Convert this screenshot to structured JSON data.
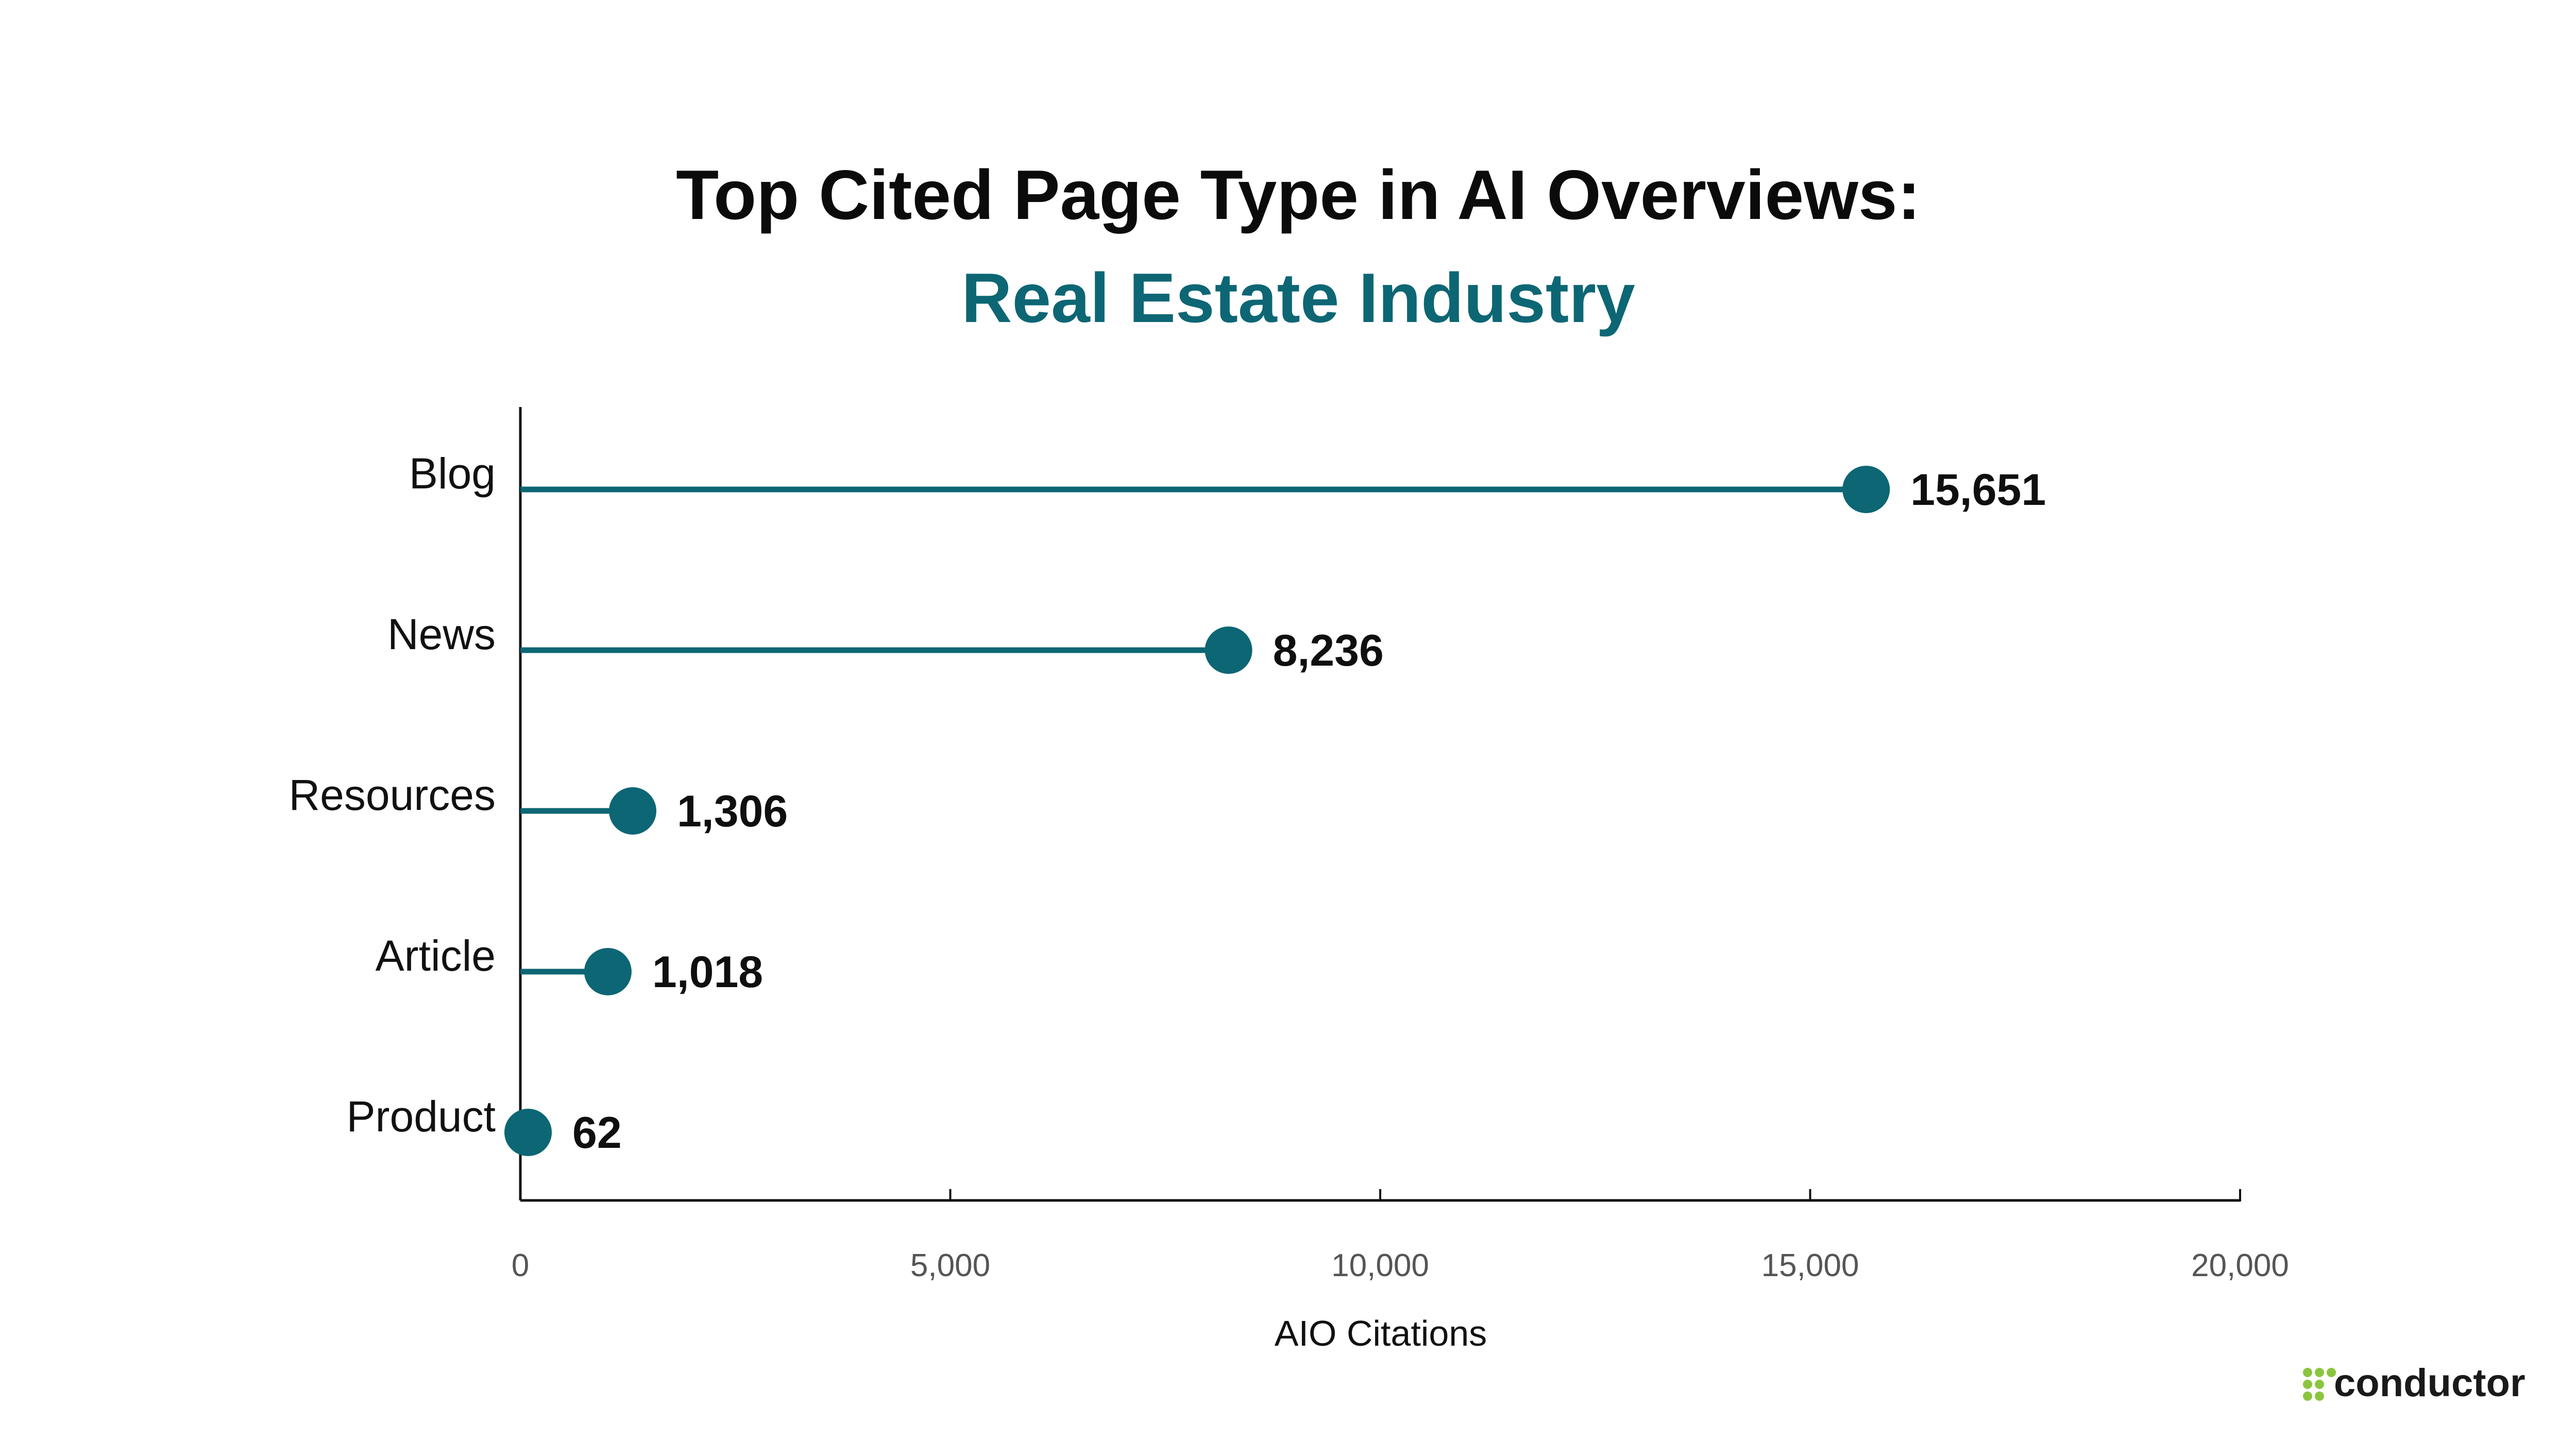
{
  "title": "Top Cited Page Type in AI Overviews:",
  "subtitle": "Real Estate Industry",
  "colors": {
    "accent": "#0d6674",
    "text": "#0b0b0b",
    "logo_green": "#8bc53f"
  },
  "logo": {
    "text": "conductor",
    "icon": "dots-grid-icon"
  },
  "chart_data": {
    "type": "lollipop",
    "orientation": "horizontal",
    "categories": [
      "Blog",
      "News",
      "Resources",
      "Article",
      "Product"
    ],
    "values": [
      15651,
      8236,
      1306,
      1018,
      62
    ],
    "value_labels": [
      "15,651",
      "8,236",
      "1,306",
      "1,018",
      "62"
    ],
    "xlabel": "AIO Citations",
    "ylabel": "",
    "xlim": [
      0,
      20000
    ],
    "x_ticks": [
      0,
      5000,
      10000,
      15000,
      20000
    ],
    "x_tick_labels": [
      "0",
      "5,000",
      "10,000",
      "15,000",
      "20,000"
    ],
    "grid": false,
    "legend": "none"
  }
}
